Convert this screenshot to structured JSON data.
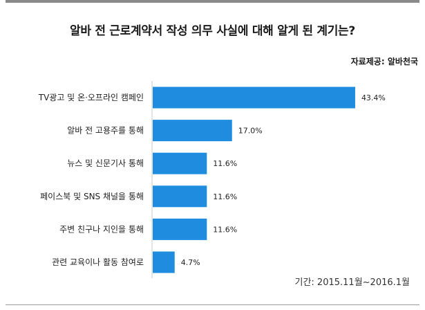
{
  "header": {
    "title": "알바 전 근로계약서 작성 의무 사실에 대해 알게 된 계기는?",
    "source": "자료제공: 알바천국"
  },
  "footer": {
    "period": "기간: 2015.11월~2016.1월"
  },
  "chart_data": {
    "type": "bar",
    "orientation": "horizontal",
    "title": "알바 전 근로계약서 작성 의무 사실에 대해 알게 된 계기는?",
    "categories": [
      "TV광고 및 온·오프라인 캠페인",
      "알바 전 고용주를 통해",
      "뉴스 및 신문기사 통해",
      "페이스북 및 SNS 채널을 통해",
      "주변 친구나 지인을 통해",
      "관련 교육이나 활동 참여로"
    ],
    "values": [
      43.4,
      17.0,
      11.6,
      11.6,
      11.6,
      4.7
    ],
    "value_labels": [
      "43.4%",
      "17.0%",
      "11.6%",
      "11.6%",
      "11.6%",
      "4.7%"
    ],
    "unit": "%",
    "bar_color": "#1f8ce0",
    "grid": false,
    "legend": "none"
  }
}
